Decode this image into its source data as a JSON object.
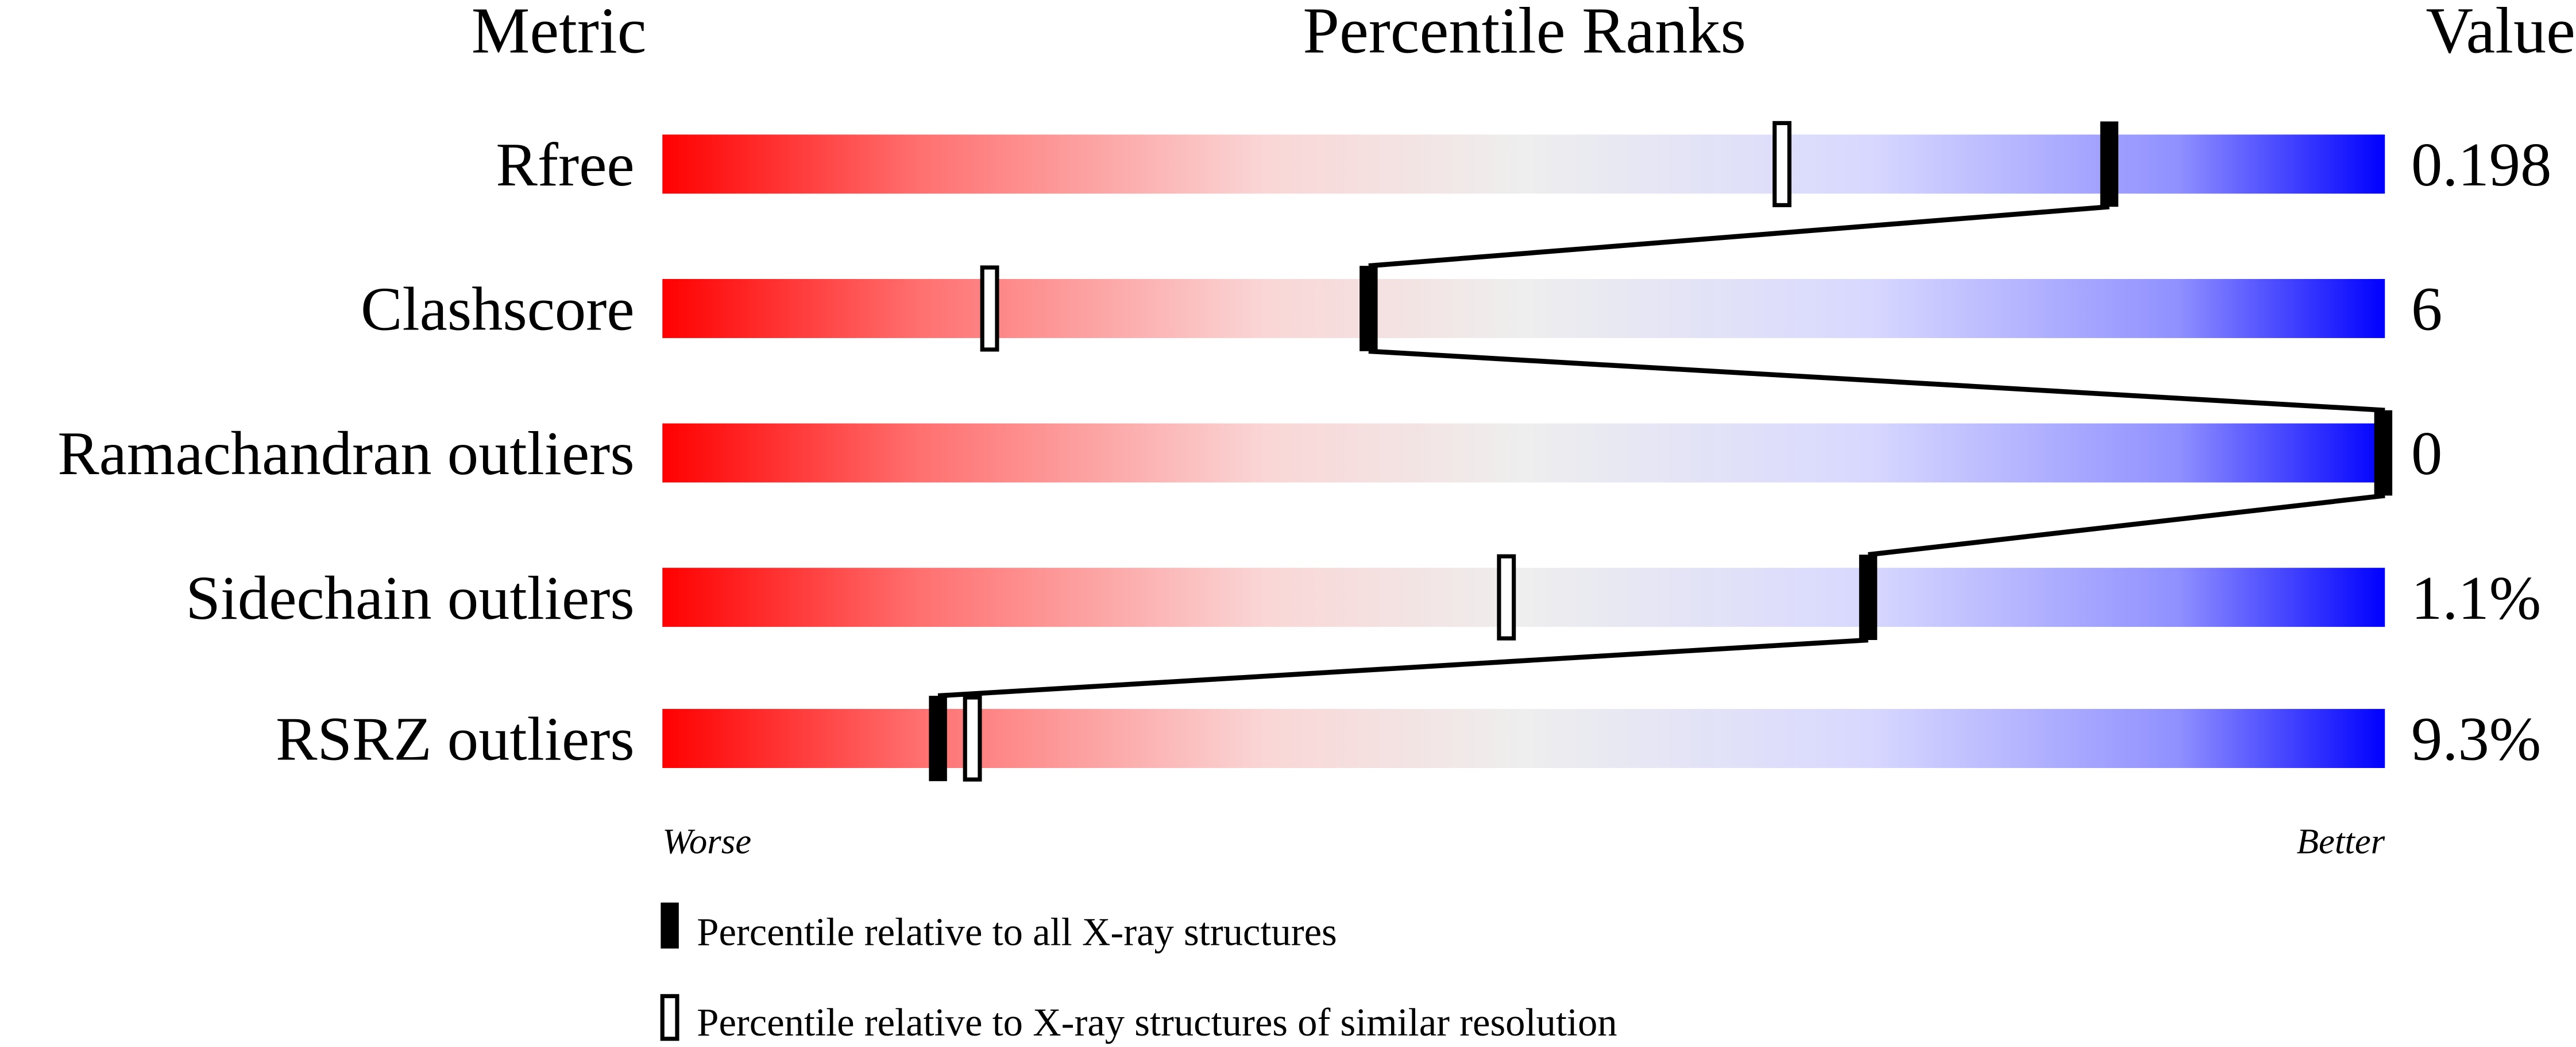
{
  "chart_data": {
    "type": "bar",
    "headers": {
      "metric": "Metric",
      "ranks": "Percentile Ranks",
      "value": "Value"
    },
    "metrics": [
      {
        "name": "Rfree",
        "value": "0.198",
        "percentile_all": 84,
        "percentile_similar": 65
      },
      {
        "name": "Clashscore",
        "value": "6",
        "percentile_all": 41,
        "percentile_similar": 19
      },
      {
        "name": "Ramachandran outliers",
        "value": "0",
        "percentile_all": 100,
        "percentile_similar": null
      },
      {
        "name": "Sidechain outliers",
        "value": "1.1%",
        "percentile_all": 70,
        "percentile_similar": 49
      },
      {
        "name": "RSRZ outliers",
        "value": "9.3%",
        "percentile_all": 16,
        "percentile_similar": 18
      }
    ],
    "xlim": [
      0,
      100
    ],
    "axis_labels": {
      "left": "Worse",
      "right": "Better"
    },
    "legend": {
      "all": "Percentile relative to all X-ray structures",
      "similar": "Percentile relative to X-ray structures of similar resolution"
    },
    "gradient_colors": [
      "#ff0000",
      "#ff7070",
      "#fad6d6",
      "#eeeeee",
      "#d8d8ff",
      "#9090ff",
      "#0000ff"
    ]
  }
}
